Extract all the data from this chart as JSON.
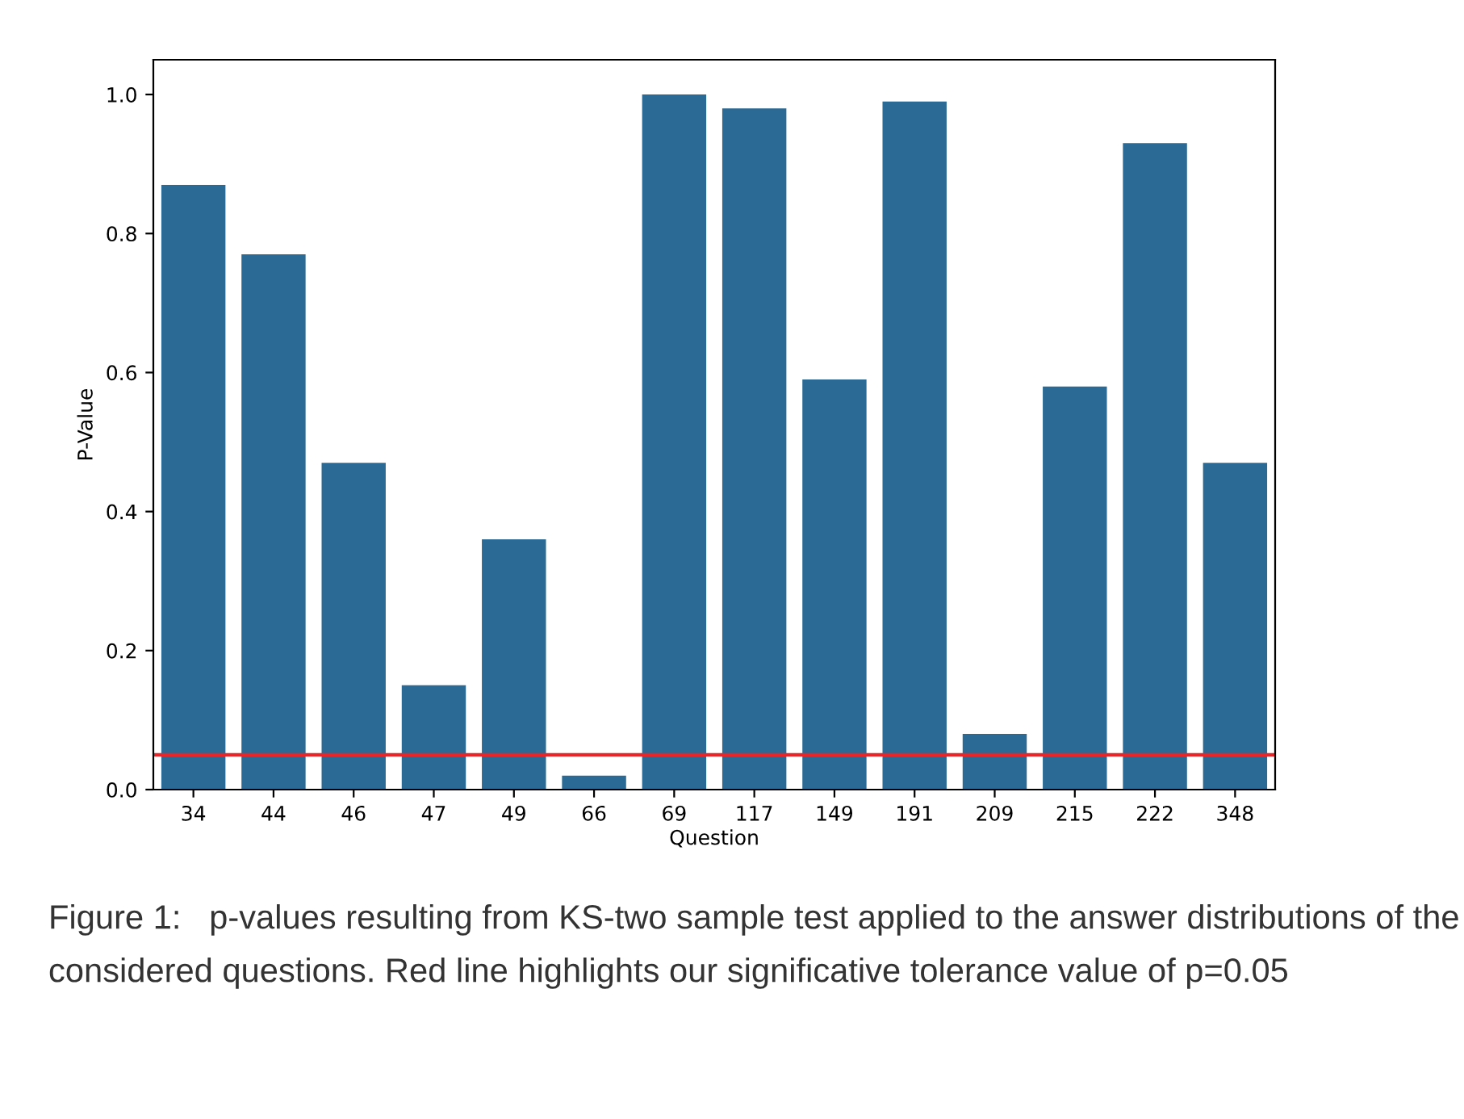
{
  "chart_data": {
    "type": "bar",
    "xlabel": "Question",
    "ylabel": "P-Value",
    "categories": [
      "34",
      "44",
      "46",
      "47",
      "49",
      "66",
      "69",
      "117",
      "149",
      "191",
      "209",
      "215",
      "222",
      "348"
    ],
    "values": [
      0.87,
      0.77,
      0.47,
      0.15,
      0.36,
      0.02,
      1.0,
      0.98,
      0.59,
      0.99,
      0.08,
      0.58,
      0.93,
      0.47
    ],
    "color": "#2b6a94",
    "ylim": [
      0,
      1.05
    ],
    "yticks": [
      {
        "value": 0,
        "label": "0.0"
      },
      {
        "value": 0.2,
        "label": "0.2"
      },
      {
        "value": 0.4,
        "label": "0.4"
      },
      {
        "value": 0.6,
        "label": "0.6"
      },
      {
        "value": 0.8,
        "label": "0.8"
      },
      {
        "value": 1,
        "label": "1.0"
      }
    ],
    "grid": false,
    "ref_lines": [
      {
        "axis": "y",
        "value": 0.05,
        "color": "#e8262a"
      }
    ],
    "annotations": [
      "Figure 1:   p-values resulting from KS-two sample test applied to the answer distributions of the considered questions. Red line highlights our significative tolerance value of p=0.05"
    ]
  }
}
